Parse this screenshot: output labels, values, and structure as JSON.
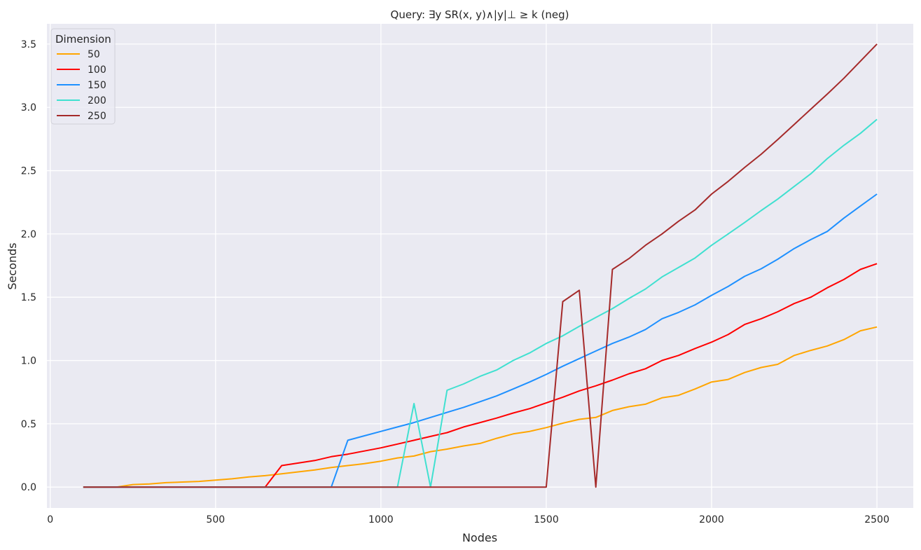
{
  "chart_data": {
    "type": "line",
    "title": "Query: ∃y  SR(x, y)∧|y|⊥ ≥ k (neg)",
    "xlabel": "Nodes",
    "ylabel": "Seconds",
    "xlim": [
      -10,
      2610
    ],
    "ylim": [
      -0.165,
      3.66
    ],
    "xticks": [
      0,
      500,
      1000,
      1500,
      2000,
      2500
    ],
    "yticks": [
      0.0,
      0.5,
      1.0,
      1.5,
      2.0,
      2.5,
      3.0,
      3.5
    ],
    "xtick_labels": [
      "0",
      "500",
      "1000",
      "1500",
      "2000",
      "2500"
    ],
    "ytick_labels": [
      "0.0",
      "0.5",
      "1.0",
      "1.5",
      "2.0",
      "2.5",
      "3.0",
      "3.5"
    ],
    "grid": true,
    "background": "#eaeaf2",
    "legend": {
      "title": "Dimension",
      "position": "top-left"
    },
    "x": [
      100,
      150,
      200,
      250,
      300,
      350,
      400,
      450,
      500,
      550,
      600,
      650,
      700,
      750,
      800,
      850,
      900,
      950,
      1000,
      1050,
      1100,
      1150,
      1200,
      1250,
      1300,
      1350,
      1400,
      1450,
      1500,
      1550,
      1600,
      1650,
      1700,
      1750,
      1800,
      1850,
      1900,
      1950,
      2000,
      2050,
      2100,
      2150,
      2200,
      2250,
      2300,
      2350,
      2400,
      2450,
      2500
    ],
    "series": [
      {
        "name": "50",
        "color": "#ffa500",
        "values": [
          0,
          0,
          0,
          0.02,
          0.025,
          0.035,
          0.04,
          0.045,
          0.055,
          0.065,
          0.08,
          0.09,
          0.105,
          0.12,
          0.135,
          0.155,
          0.17,
          0.185,
          0.205,
          0.23,
          0.245,
          0.28,
          0.3,
          0.325,
          0.345,
          0.385,
          0.42,
          0.44,
          0.47,
          0.505,
          0.535,
          0.55,
          0.605,
          0.635,
          0.655,
          0.705,
          0.725,
          0.775,
          0.83,
          0.85,
          0.905,
          0.945,
          0.97,
          1.04,
          1.08,
          1.115,
          1.165,
          1.235,
          1.265
        ]
      },
      {
        "name": "100",
        "color": "#ff0000",
        "values": [
          0,
          0,
          0,
          0,
          0,
          0,
          0,
          0,
          0,
          0,
          0,
          0,
          0.17,
          0.19,
          0.21,
          0.24,
          0.26,
          0.285,
          0.31,
          0.34,
          0.37,
          0.4,
          0.43,
          0.475,
          0.51,
          0.545,
          0.585,
          0.62,
          0.665,
          0.71,
          0.76,
          0.8,
          0.845,
          0.895,
          0.935,
          1.0,
          1.04,
          1.095,
          1.145,
          1.205,
          1.285,
          1.33,
          1.385,
          1.45,
          1.5,
          1.575,
          1.64,
          1.72,
          1.765
        ]
      },
      {
        "name": "150",
        "color": "#1e90ff",
        "values": [
          0,
          0,
          0,
          0,
          0,
          0,
          0,
          0,
          0,
          0,
          0,
          0,
          0,
          0,
          0,
          0,
          0.37,
          0.405,
          0.44,
          0.475,
          0.51,
          0.55,
          0.59,
          0.63,
          0.675,
          0.72,
          0.775,
          0.83,
          0.89,
          0.955,
          1.015,
          1.075,
          1.135,
          1.185,
          1.245,
          1.33,
          1.38,
          1.44,
          1.515,
          1.585,
          1.665,
          1.725,
          1.8,
          1.885,
          1.955,
          2.02,
          2.125,
          2.22,
          2.315
        ]
      },
      {
        "name": "200",
        "color": "#40e0d0",
        "values": [
          0,
          0,
          0,
          0,
          0,
          0,
          0,
          0,
          0,
          0,
          0,
          0,
          0,
          0,
          0,
          0,
          0,
          0,
          0,
          0,
          0.66,
          0,
          0.765,
          0.815,
          0.875,
          0.925,
          1.0,
          1.06,
          1.135,
          1.195,
          1.27,
          1.34,
          1.41,
          1.49,
          1.565,
          1.66,
          1.735,
          1.81,
          1.91,
          2.0,
          2.09,
          2.185,
          2.275,
          2.375,
          2.475,
          2.595,
          2.7,
          2.795,
          2.905
        ]
      },
      {
        "name": "250",
        "color": "#a52a2a",
        "values": [
          0,
          0,
          0,
          0,
          0,
          0,
          0,
          0,
          0,
          0,
          0,
          0,
          0,
          0,
          0,
          0,
          0,
          0,
          0,
          0,
          0,
          0,
          0,
          0,
          0,
          0,
          0,
          0,
          0,
          1.465,
          1.555,
          0,
          1.72,
          1.805,
          1.91,
          2.0,
          2.1,
          2.19,
          2.315,
          2.415,
          2.525,
          2.63,
          2.745,
          2.865,
          2.985,
          3.105,
          3.23,
          3.365,
          3.5
        ]
      }
    ]
  }
}
